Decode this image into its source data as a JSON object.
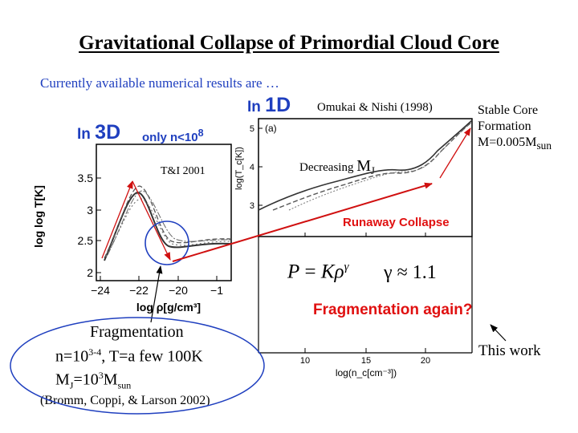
{
  "slide": {
    "title": "Gravitational Collapse of Primordial Cloud Core",
    "subtitle": "Currently available numerical results are …",
    "in1d": {
      "prefix": "In ",
      "dim": "1D"
    },
    "in3d": {
      "prefix": "In ",
      "dim": "3D",
      "note_prefix": "only n<10",
      "note_exp": "8"
    },
    "ref_1d": "Omukai & Nishi (1998)",
    "stable_core": {
      "line1": "Stable Core",
      "line2": "Formation",
      "line3_prefix": "M=0.005M",
      "line3_sub": "sun"
    },
    "decreasing": {
      "text": "Decreasing ",
      "mj": "M",
      "mj_sub": "J"
    },
    "ti_label": "T&I 2001",
    "runaway": "Runaway Collapse",
    "fragmentation_again": "Fragmentation again?",
    "this_work": "This work",
    "formula": {
      "p": "P",
      "eq": " = ",
      "k": "Kρ",
      "exp": "γ",
      "gamma": "γ ≈ 1.1"
    },
    "fragmentation": {
      "heading": "Fragmentation",
      "n_prefix": "n=10",
      "n_exp": "3-4",
      "n_suffix": ", T=a few 100K",
      "mj_prefix": "M",
      "mj_sub": "J",
      "mj_mid": "=10",
      "mj_exp": "3",
      "mj_end": "M",
      "mj_end_sub": "sun",
      "citation": "(Bromm, Coppi, & Larson 2002)"
    }
  },
  "plot_3d": {
    "ylabel": "log log T[K]",
    "xlabel": "log ρ[g/cm³]",
    "yticks": [
      "3.5",
      "3",
      "2.5",
      "2"
    ],
    "xticks": [
      "−24",
      "−22",
      "−20",
      "−1"
    ]
  },
  "plot_1d": {
    "ylabel": "log(T_c[K])",
    "xlabel": "log(n_c[cm⁻³])",
    "panel": "(a)",
    "yticks": [
      "5",
      "4",
      "3"
    ],
    "xticks": [
      "10",
      "15",
      "20"
    ]
  },
  "colors": {
    "accent_blue": "#1f3fbf",
    "red": "#e01010"
  }
}
